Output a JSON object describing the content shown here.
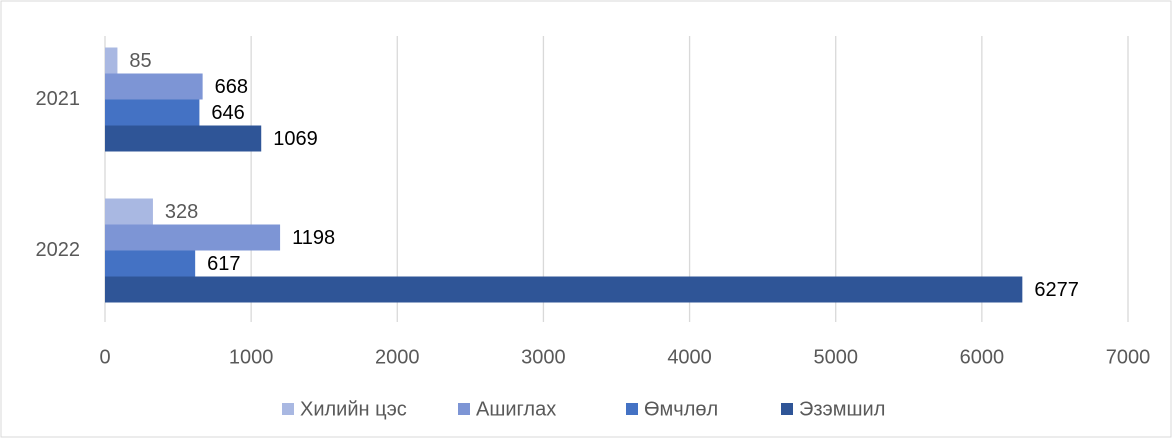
{
  "chart_data": {
    "type": "bar",
    "orientation": "horizontal",
    "categories": [
      "2021",
      "2022"
    ],
    "series": [
      {
        "name": "Хилийн цэс",
        "color": "#a9b8e2",
        "values": [
          85,
          328
        ]
      },
      {
        "name": "Ашиглах",
        "color": "#7d95d5",
        "values": [
          668,
          1198
        ]
      },
      {
        "name": "Өмчлөл",
        "color": "#4472c4",
        "values": [
          646,
          617
        ]
      },
      {
        "name": "Эзэмшил",
        "color": "#2f5597",
        "values": [
          1069,
          6277
        ]
      }
    ],
    "xlim": [
      0,
      7000
    ],
    "xticks": [
      0,
      1000,
      2000,
      3000,
      4000,
      5000,
      6000,
      7000
    ],
    "grid": true,
    "legend": "bottom"
  }
}
